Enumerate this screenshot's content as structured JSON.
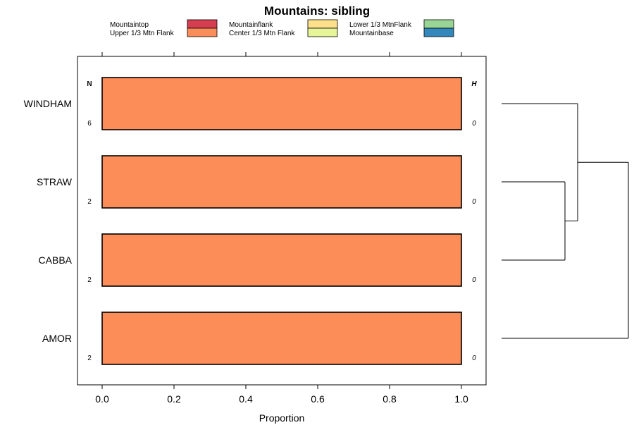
{
  "chart_data": {
    "type": "bar",
    "orientation": "horizontal",
    "stacked": true,
    "title": "Mountains: sibling",
    "xlabel": "Proportion",
    "ylabel": "",
    "xlim": [
      -0.07,
      1.07
    ],
    "x_ticks": [
      "0.0",
      "0.2",
      "0.4",
      "0.6",
      "0.8",
      "1.0"
    ],
    "x_tick_values": [
      0,
      0.2,
      0.4,
      0.6,
      0.8,
      1.0
    ],
    "categories": [
      "WINDHAM",
      "STRAW",
      "CABBA",
      "AMOR"
    ],
    "legend_position": "top",
    "legend": [
      {
        "name": "Mountaintop",
        "color": "#d53e4f"
      },
      {
        "name": "Upper 1/3 Mtn Flank",
        "color": "#fc8d59"
      },
      {
        "name": "Mountainflank",
        "color": "#fee08b"
      },
      {
        "name": "Center 1/3 Mtn Flank",
        "color": "#e6f598"
      },
      {
        "name": "Lower 1/3 MtnFlank",
        "color": "#99d594"
      },
      {
        "name": "Mountainbase",
        "color": "#3288bd"
      }
    ],
    "series": [
      {
        "name": "Mountaintop",
        "values": [
          0,
          0,
          0,
          0
        ]
      },
      {
        "name": "Upper 1/3 Mtn Flank",
        "values": [
          1.0,
          1.0,
          1.0,
          1.0
        ]
      },
      {
        "name": "Mountainflank",
        "values": [
          0,
          0,
          0,
          0
        ]
      },
      {
        "name": "Center 1/3 Mtn Flank",
        "values": [
          0,
          0,
          0,
          0
        ]
      },
      {
        "name": "Lower 1/3 MtnFlank",
        "values": [
          0,
          0,
          0,
          0
        ]
      },
      {
        "name": "Mountainbase",
        "values": [
          0,
          0,
          0,
          0
        ]
      }
    ],
    "n_header": "N",
    "h_header": "H",
    "n_values": [
      "6",
      "2",
      "2",
      "2"
    ],
    "h_values": [
      "0",
      "0",
      "0",
      "0"
    ],
    "dendrogram": {
      "type": "hierarchical-clustering",
      "merges": [
        {
          "left": "STRAW",
          "right": "CABBA",
          "height": 0.5
        },
        {
          "left": "WINDHAM",
          "right": "STRAW+CABBA",
          "height": 0.6
        },
        {
          "left": "WINDHAM+STRAW+CABBA",
          "right": "AMOR",
          "height": 1.0
        }
      ]
    }
  }
}
